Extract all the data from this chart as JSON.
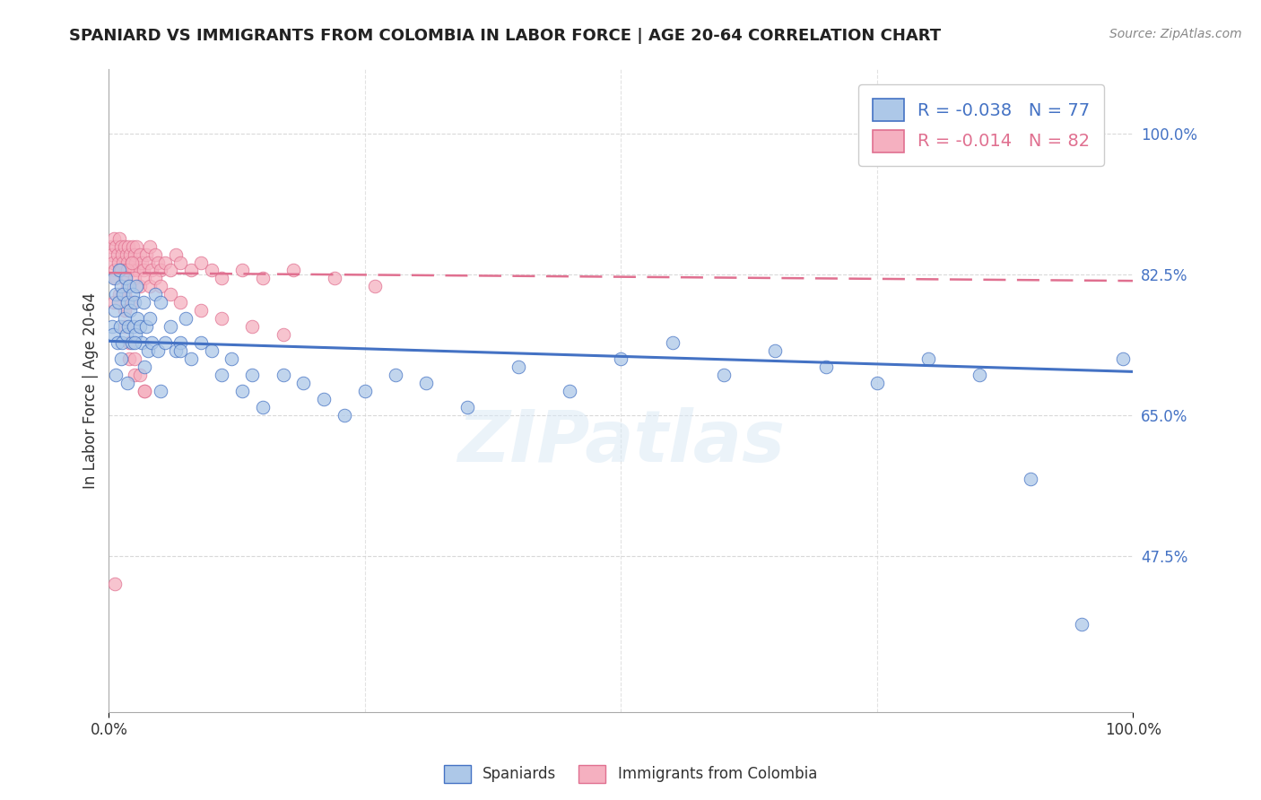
{
  "title": "SPANIARD VS IMMIGRANTS FROM COLOMBIA IN LABOR FORCE | AGE 20-64 CORRELATION CHART",
  "source": "Source: ZipAtlas.com",
  "ylabel": "In Labor Force | Age 20-64",
  "xlim": [
    0.0,
    1.0
  ],
  "ylim": [
    0.28,
    1.08
  ],
  "ytick_positions": [
    0.475,
    0.65,
    0.825,
    1.0
  ],
  "ytick_labels": [
    "47.5%",
    "65.0%",
    "82.5%",
    "100.0%"
  ],
  "legend_labels": [
    "Spaniards",
    "Immigrants from Colombia"
  ],
  "R_blue": -0.038,
  "N_blue": 77,
  "R_pink": -0.014,
  "N_pink": 82,
  "blue_color": "#adc8e8",
  "pink_color": "#f5b0c0",
  "blue_line_color": "#4472c4",
  "pink_line_color": "#e07090",
  "grid_color": "#d0d0d0",
  "title_color": "#222222",
  "watermark": "ZIPatlas",
  "spaniards_x": [
    0.003,
    0.004,
    0.005,
    0.006,
    0.007,
    0.008,
    0.009,
    0.01,
    0.011,
    0.012,
    0.013,
    0.014,
    0.015,
    0.016,
    0.017,
    0.018,
    0.019,
    0.02,
    0.021,
    0.022,
    0.023,
    0.024,
    0.025,
    0.026,
    0.027,
    0.028,
    0.03,
    0.032,
    0.034,
    0.036,
    0.038,
    0.04,
    0.042,
    0.045,
    0.048,
    0.05,
    0.055,
    0.06,
    0.065,
    0.07,
    0.075,
    0.08,
    0.09,
    0.1,
    0.11,
    0.12,
    0.13,
    0.14,
    0.15,
    0.17,
    0.19,
    0.21,
    0.23,
    0.25,
    0.28,
    0.31,
    0.35,
    0.4,
    0.45,
    0.5,
    0.55,
    0.6,
    0.65,
    0.7,
    0.75,
    0.8,
    0.85,
    0.9,
    0.95,
    0.99,
    0.007,
    0.012,
    0.018,
    0.025,
    0.035,
    0.05,
    0.07
  ],
  "spaniards_y": [
    0.76,
    0.75,
    0.82,
    0.78,
    0.8,
    0.74,
    0.79,
    0.83,
    0.76,
    0.81,
    0.74,
    0.8,
    0.77,
    0.82,
    0.75,
    0.79,
    0.76,
    0.81,
    0.78,
    0.74,
    0.8,
    0.76,
    0.79,
    0.75,
    0.81,
    0.77,
    0.76,
    0.74,
    0.79,
    0.76,
    0.73,
    0.77,
    0.74,
    0.8,
    0.73,
    0.79,
    0.74,
    0.76,
    0.73,
    0.74,
    0.77,
    0.72,
    0.74,
    0.73,
    0.7,
    0.72,
    0.68,
    0.7,
    0.66,
    0.7,
    0.69,
    0.67,
    0.65,
    0.68,
    0.7,
    0.69,
    0.66,
    0.71,
    0.68,
    0.72,
    0.74,
    0.7,
    0.73,
    0.71,
    0.69,
    0.72,
    0.7,
    0.57,
    0.39,
    0.72,
    0.7,
    0.72,
    0.69,
    0.74,
    0.71,
    0.68,
    0.73
  ],
  "colombia_x": [
    0.002,
    0.003,
    0.004,
    0.005,
    0.006,
    0.007,
    0.008,
    0.009,
    0.01,
    0.011,
    0.012,
    0.013,
    0.014,
    0.015,
    0.016,
    0.017,
    0.018,
    0.019,
    0.02,
    0.021,
    0.022,
    0.023,
    0.024,
    0.025,
    0.026,
    0.027,
    0.028,
    0.03,
    0.032,
    0.034,
    0.036,
    0.038,
    0.04,
    0.042,
    0.045,
    0.048,
    0.05,
    0.055,
    0.06,
    0.065,
    0.07,
    0.08,
    0.09,
    0.1,
    0.11,
    0.13,
    0.15,
    0.18,
    0.22,
    0.26,
    0.007,
    0.012,
    0.015,
    0.018,
    0.022,
    0.025,
    0.03,
    0.035,
    0.04,
    0.045,
    0.05,
    0.06,
    0.07,
    0.09,
    0.11,
    0.14,
    0.17,
    0.005,
    0.01,
    0.015,
    0.02,
    0.025,
    0.035,
    0.015,
    0.02,
    0.025,
    0.03,
    0.035,
    0.015,
    0.018,
    0.022,
    0.006
  ],
  "colombia_y": [
    0.86,
    0.85,
    0.84,
    0.87,
    0.83,
    0.86,
    0.85,
    0.84,
    0.87,
    0.83,
    0.86,
    0.85,
    0.84,
    0.86,
    0.83,
    0.85,
    0.84,
    0.86,
    0.83,
    0.85,
    0.84,
    0.86,
    0.83,
    0.85,
    0.84,
    0.86,
    0.83,
    0.85,
    0.84,
    0.83,
    0.85,
    0.84,
    0.86,
    0.83,
    0.85,
    0.84,
    0.83,
    0.84,
    0.83,
    0.85,
    0.84,
    0.83,
    0.84,
    0.83,
    0.82,
    0.83,
    0.82,
    0.83,
    0.82,
    0.81,
    0.82,
    0.83,
    0.82,
    0.83,
    0.84,
    0.82,
    0.81,
    0.82,
    0.81,
    0.82,
    0.81,
    0.8,
    0.79,
    0.78,
    0.77,
    0.76,
    0.75,
    0.79,
    0.8,
    0.78,
    0.72,
    0.7,
    0.68,
    0.76,
    0.74,
    0.72,
    0.7,
    0.68,
    0.8,
    0.81,
    0.79,
    0.44
  ],
  "blue_trend_x": [
    0.0,
    1.0
  ],
  "blue_trend_y": [
    0.742,
    0.704
  ],
  "pink_trend_x": [
    0.0,
    1.0
  ],
  "pink_trend_y": [
    0.827,
    0.817
  ]
}
